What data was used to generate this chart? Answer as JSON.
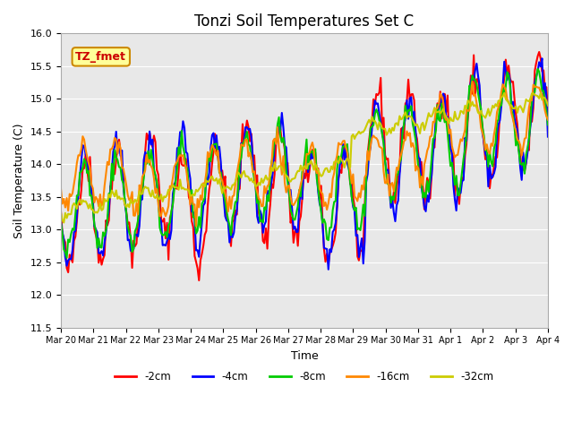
{
  "title": "Tonzi Soil Temperatures Set C",
  "xlabel": "Time",
  "ylabel": "Soil Temperature (C)",
  "ylim": [
    11.5,
    16.0
  ],
  "yticks": [
    11.5,
    12.0,
    12.5,
    13.0,
    13.5,
    14.0,
    14.5,
    15.0,
    15.5,
    16.0
  ],
  "xtick_labels": [
    "Mar 20",
    "Mar 21",
    "Mar 22",
    "Mar 23",
    "Mar 24",
    "Mar 25",
    "Mar 26",
    "Mar 27",
    "Mar 28",
    "Mar 29",
    "Mar 30",
    "Mar 31",
    "Apr 1",
    "Apr 2",
    "Apr 3",
    "Apr 4"
  ],
  "legend_labels": [
    "-2cm",
    "-4cm",
    "-8cm",
    "-16cm",
    "-32cm"
  ],
  "legend_colors": [
    "#ff0000",
    "#0000ff",
    "#00cc00",
    "#ff8800",
    "#cccc00"
  ],
  "annotation_text": "TZ_fmet",
  "annotation_box_color": "#ffff99",
  "annotation_box_edge": "#cc8800",
  "background_color": "#e8e8e8",
  "plot_bg_color": "#e8e8e8",
  "line_colors": [
    "#ff0000",
    "#0000ff",
    "#00cc00",
    "#ff8800",
    "#cccc00"
  ],
  "linewidth": 1.5,
  "num_points": 336,
  "start_day": 0,
  "end_day": 15
}
